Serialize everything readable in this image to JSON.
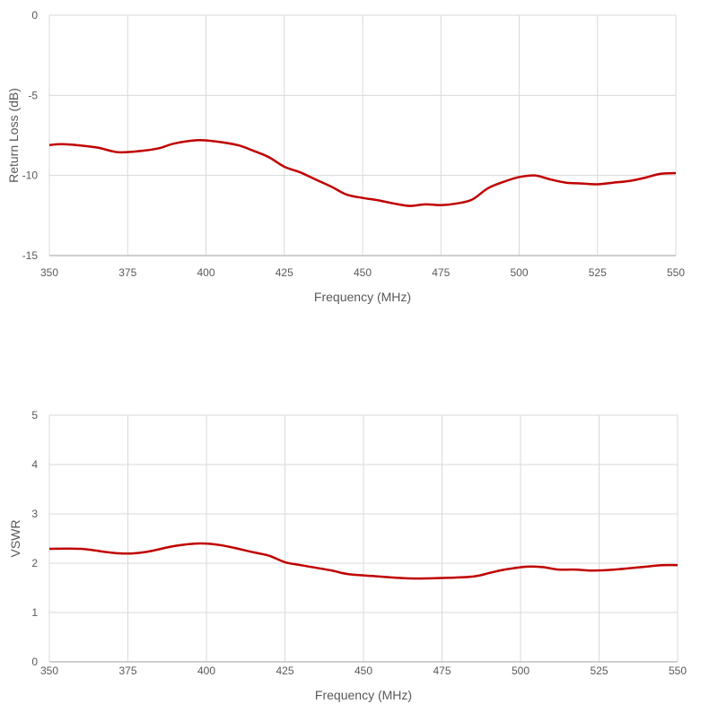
{
  "colors": {
    "line": "#c00000",
    "grid": "#d9d9d9",
    "text": "#595959"
  },
  "chart_data": [
    {
      "type": "line",
      "title": "",
      "xlabel": "Frequency (MHz)",
      "ylabel": "Return Loss (dB)",
      "xlim": [
        350,
        550
      ],
      "ylim": [
        -15,
        0
      ],
      "xticks": [
        350,
        375,
        400,
        425,
        450,
        475,
        500,
        525,
        550
      ],
      "yticks": [
        0,
        -5,
        -10,
        -15
      ],
      "grid": true,
      "x": [
        350,
        355,
        365,
        372,
        380,
        385,
        390,
        397,
        402,
        410,
        415,
        420,
        425,
        430,
        435,
        440,
        445,
        450,
        455,
        460,
        465,
        470,
        475,
        480,
        485,
        490,
        495,
        500,
        505,
        510,
        515,
        520,
        525,
        530,
        535,
        540,
        545,
        550
      ],
      "y": [
        -8.1,
        -8.05,
        -8.25,
        -8.55,
        -8.45,
        -8.3,
        -8.0,
        -7.8,
        -7.85,
        -8.1,
        -8.45,
        -8.85,
        -9.45,
        -9.8,
        -10.25,
        -10.7,
        -11.2,
        -11.4,
        -11.55,
        -11.75,
        -11.9,
        -11.8,
        -11.85,
        -11.75,
        -11.5,
        -10.8,
        -10.4,
        -10.1,
        -10.0,
        -10.25,
        -10.45,
        -10.5,
        -10.55,
        -10.45,
        -10.35,
        -10.15,
        -9.9,
        -9.85
      ]
    },
    {
      "type": "line",
      "title": "",
      "xlabel": "Frequency (MHz)",
      "ylabel": "VSWR",
      "xlim": [
        350,
        550
      ],
      "ylim": [
        0,
        5
      ],
      "xticks": [
        350,
        375,
        400,
        425,
        450,
        475,
        500,
        525,
        550
      ],
      "yticks": [
        0,
        1,
        2,
        3,
        4,
        5
      ],
      "grid": true,
      "x": [
        350,
        360,
        372,
        380,
        390,
        398,
        405,
        415,
        420,
        425,
        430,
        440,
        445,
        455,
        465,
        475,
        485,
        490,
        495,
        502,
        507,
        512,
        517,
        523,
        530,
        540,
        545,
        550
      ],
      "y": [
        2.29,
        2.29,
        2.2,
        2.22,
        2.35,
        2.4,
        2.36,
        2.22,
        2.15,
        2.02,
        1.96,
        1.85,
        1.78,
        1.73,
        1.69,
        1.7,
        1.73,
        1.8,
        1.87,
        1.93,
        1.92,
        1.87,
        1.87,
        1.85,
        1.87,
        1.93,
        1.96,
        1.96
      ]
    }
  ]
}
